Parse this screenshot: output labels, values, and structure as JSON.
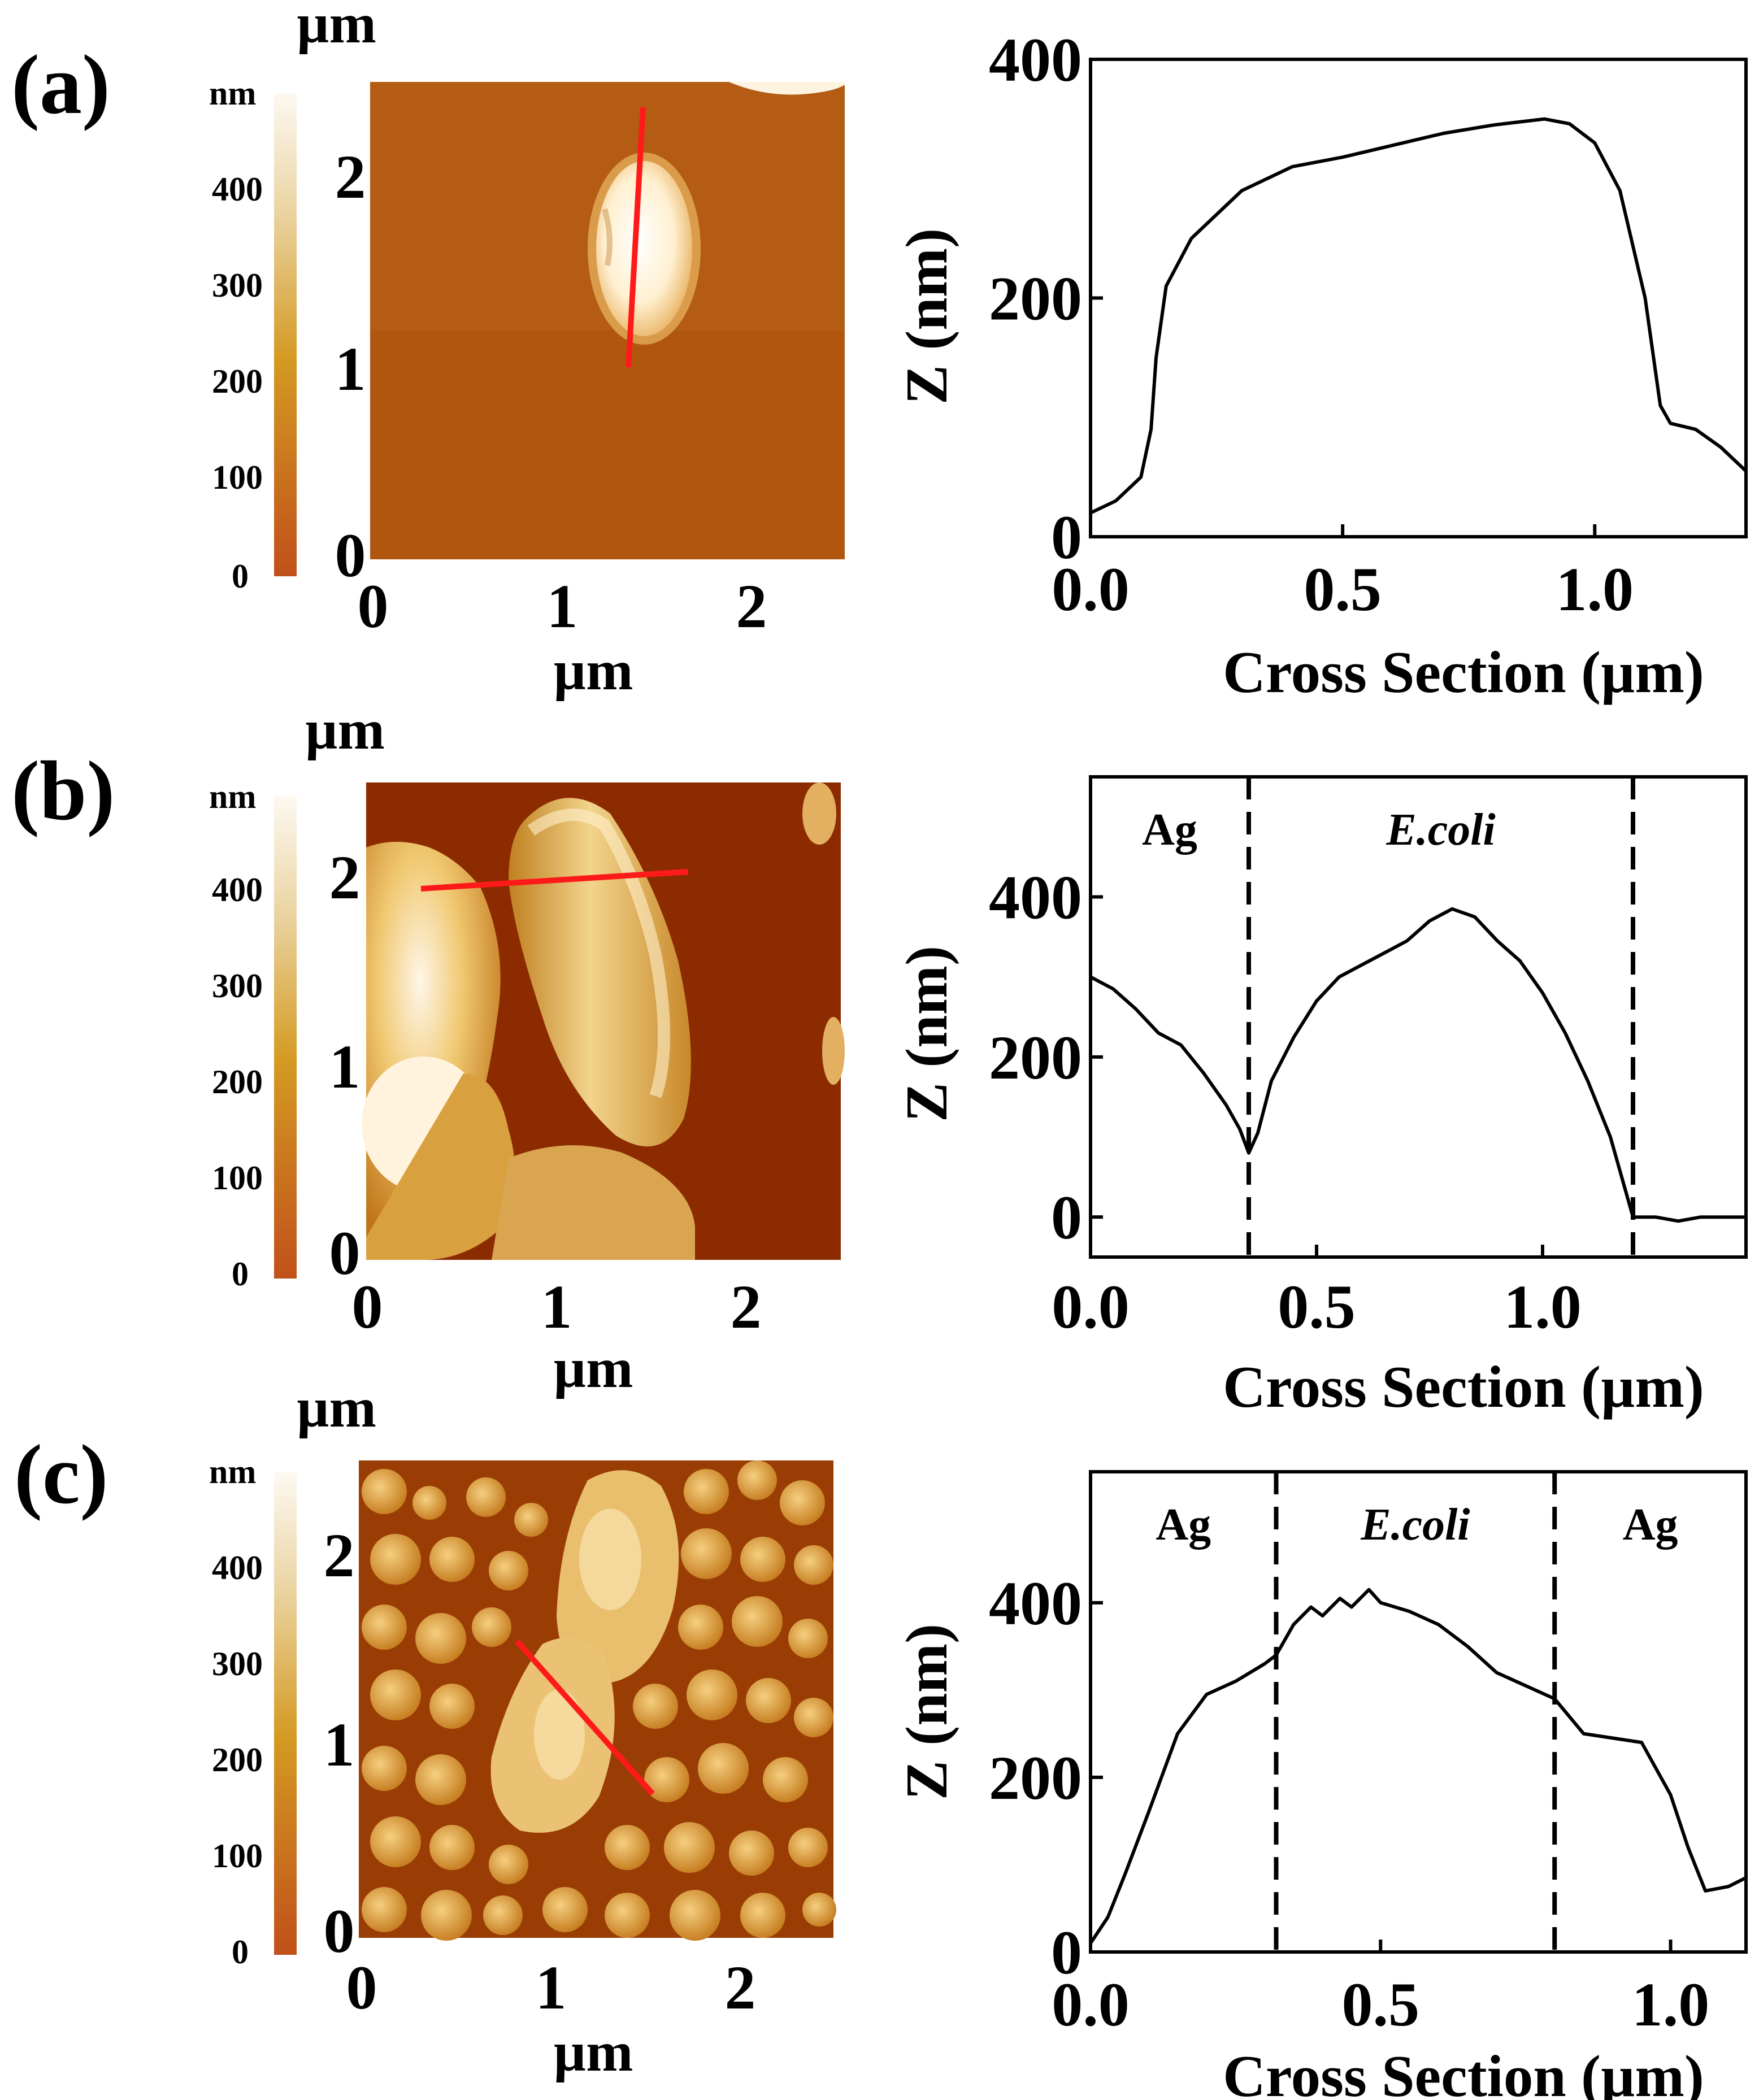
{
  "panels": [
    {
      "label": "(a)",
      "afm": {
        "unit_top": "µm",
        "unit_bottom": "µm",
        "x_ticks": [
          "0",
          "1",
          "2"
        ],
        "y_ticks": [
          "0",
          "1",
          "2"
        ],
        "colorbar_unit": "nm",
        "colorbar_ticks": [
          "0",
          "100",
          "200",
          "300",
          "400"
        ],
        "scan_line": "single E. coli cell, near-vertical line"
      },
      "profile": {
        "ylabel": "Z (nm)",
        "xlabel": "Cross Section (µm)",
        "x_ticks": [
          "0.0",
          "0.5",
          "1.0"
        ],
        "y_ticks": [
          "0",
          "200",
          "400"
        ],
        "regions": []
      }
    },
    {
      "label": "(b)",
      "afm": {
        "unit_top": "µm",
        "unit_bottom": "µm",
        "x_ticks": [
          "0",
          "1",
          "2"
        ],
        "y_ticks": [
          "0",
          "1",
          "2"
        ],
        "colorbar_unit": "nm",
        "colorbar_ticks": [
          "0",
          "100",
          "200",
          "300",
          "400"
        ]
      },
      "profile": {
        "ylabel": "Z (nm)",
        "xlabel": "Cross Section (µm)",
        "x_ticks": [
          "0.0",
          "0.5",
          "1.0"
        ],
        "y_ticks": [
          "0",
          "200",
          "400"
        ],
        "regions": [
          "Ag",
          "E.coli"
        ]
      }
    },
    {
      "label": "(c)",
      "afm": {
        "unit_top": "µm",
        "unit_bottom": "µm",
        "x_ticks": [
          "0",
          "1",
          "2"
        ],
        "y_ticks": [
          "0",
          "1",
          "2"
        ],
        "colorbar_unit": "nm",
        "colorbar_ticks": [
          "0",
          "100",
          "200",
          "300",
          "400"
        ]
      },
      "profile": {
        "ylabel": "Z (nm)",
        "xlabel": "Cross Section (µm)",
        "x_ticks": [
          "0.0",
          "0.5",
          "1.0"
        ],
        "y_ticks": [
          "0",
          "200",
          "400"
        ],
        "regions": [
          "Ag",
          "E.coli",
          "Ag"
        ]
      }
    }
  ],
  "colors": {
    "scan_line": "#ff1a1a",
    "colorbar_low": "#b5400f",
    "colorbar_mid": "#d49a22",
    "colorbar_high": "#fdf7ec",
    "substrate_a": "#b0560f",
    "substrate_b": "#8c2b00",
    "substrate_c": "#9a3d05"
  },
  "chart_data": [
    {
      "type": "line",
      "title": "",
      "xlabel": "Cross Section (µm)",
      "ylabel": "Z (nm)",
      "xlim": [
        0,
        1.3
      ],
      "ylim": [
        0,
        400
      ],
      "x": [
        0,
        0.05,
        0.1,
        0.12,
        0.13,
        0.15,
        0.2,
        0.3,
        0.4,
        0.5,
        0.6,
        0.7,
        0.8,
        0.9,
        0.95,
        1.0,
        1.05,
        1.1,
        1.13,
        1.15,
        1.2,
        1.25,
        1.3
      ],
      "y": [
        20,
        30,
        50,
        90,
        150,
        210,
        250,
        290,
        310,
        318,
        328,
        338,
        345,
        350,
        346,
        330,
        290,
        200,
        110,
        95,
        90,
        75,
        55
      ]
    },
    {
      "type": "line",
      "title": "",
      "xlabel": "Cross Section (µm)",
      "ylabel": "Z (nm)",
      "xlim": [
        0,
        1.45
      ],
      "ylim": [
        -50,
        550
      ],
      "region_labels": [
        "Ag",
        "E.coli"
      ],
      "region_boundaries": [
        0.35,
        1.2
      ],
      "x": [
        0,
        0.05,
        0.1,
        0.15,
        0.2,
        0.25,
        0.3,
        0.33,
        0.35,
        0.37,
        0.4,
        0.45,
        0.5,
        0.55,
        0.6,
        0.65,
        0.7,
        0.75,
        0.8,
        0.85,
        0.9,
        0.95,
        1.0,
        1.05,
        1.1,
        1.15,
        1.18,
        1.2,
        1.25,
        1.3,
        1.35,
        1.4,
        1.45
      ],
      "y": [
        300,
        285,
        260,
        230,
        215,
        180,
        140,
        110,
        80,
        105,
        170,
        225,
        270,
        300,
        315,
        330,
        345,
        370,
        385,
        375,
        345,
        320,
        280,
        230,
        170,
        100,
        40,
        0,
        0,
        -5,
        0,
        0,
        0
      ]
    },
    {
      "type": "line",
      "title": "",
      "xlabel": "Cross Section (µm)",
      "ylabel": "Z (nm)",
      "xlim": [
        0,
        1.13
      ],
      "ylim": [
        0,
        550
      ],
      "region_labels": [
        "Ag",
        "E.coli",
        "Ag"
      ],
      "region_boundaries": [
        0.32,
        0.8
      ],
      "x": [
        0,
        0.03,
        0.06,
        0.1,
        0.15,
        0.2,
        0.25,
        0.3,
        0.32,
        0.35,
        0.38,
        0.4,
        0.43,
        0.45,
        0.48,
        0.5,
        0.55,
        0.6,
        0.65,
        0.7,
        0.75,
        0.8,
        0.85,
        0.9,
        0.95,
        1.0,
        1.03,
        1.06,
        1.1,
        1.13
      ],
      "y": [
        10,
        40,
        90,
        160,
        250,
        295,
        310,
        330,
        340,
        375,
        395,
        385,
        405,
        395,
        415,
        400,
        390,
        375,
        350,
        320,
        305,
        290,
        250,
        245,
        240,
        180,
        120,
        70,
        75,
        85
      ]
    }
  ]
}
